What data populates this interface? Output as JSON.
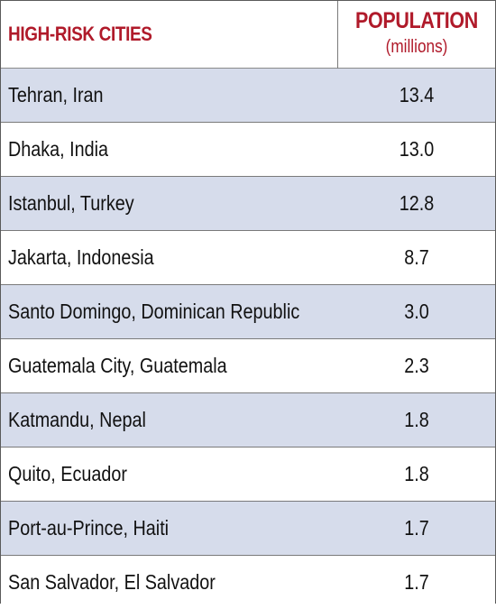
{
  "header": {
    "city_label": "HIGH-RISK CITIES",
    "population_label": "POPULATION",
    "population_unit": "(millions)"
  },
  "rows": [
    {
      "city": "Tehran, Iran",
      "population": "13.4"
    },
    {
      "city": "Dhaka, India",
      "population": "13.0"
    },
    {
      "city": "Istanbul, Turkey",
      "population": "12.8"
    },
    {
      "city": "Jakarta, Indonesia",
      "population": "8.7"
    },
    {
      "city": "Santo Domingo, Dominican Republic",
      "population": "3.0"
    },
    {
      "city": "Guatemala City, Guatemala",
      "population": "2.3"
    },
    {
      "city": "Katmandu, Nepal",
      "population": "1.8"
    },
    {
      "city": "Quito, Ecuador",
      "population": "1.8"
    },
    {
      "city": "Port-au-Prince, Haiti",
      "population": "1.7"
    },
    {
      "city": "San Salvador, El Salvador",
      "population": "1.7"
    }
  ],
  "colors": {
    "header_text": "#b01a2a",
    "shaded_row": "#d6dceb",
    "plain_row": "#ffffff",
    "border": "#7a7a7a"
  }
}
